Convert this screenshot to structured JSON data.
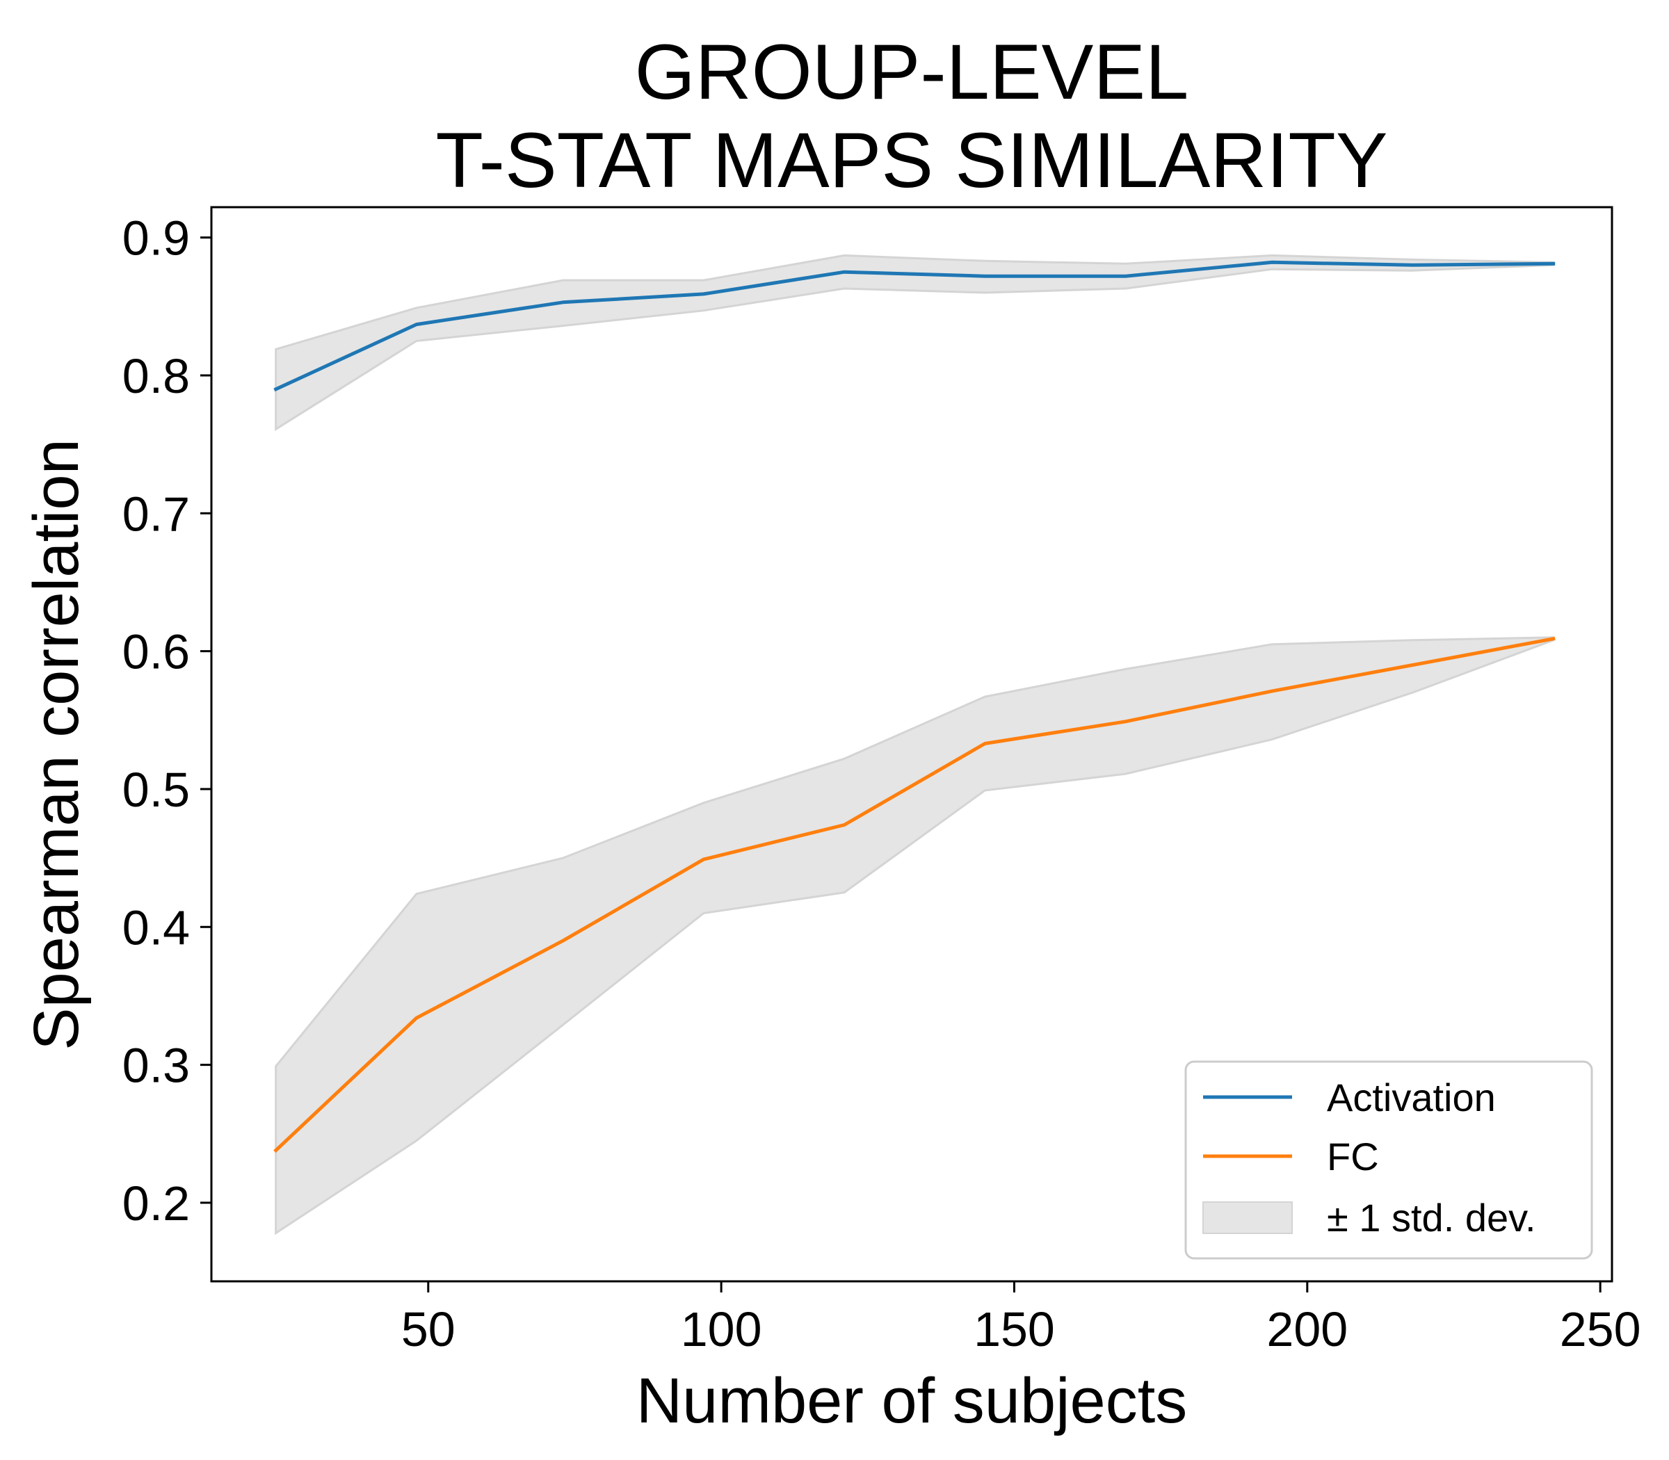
{
  "chart_data": {
    "type": "line",
    "title": [
      "GROUP-LEVEL",
      "T-STAT MAPS SIMILARITY"
    ],
    "xlabel": "Number of subjects",
    "ylabel": "Spearman correlation",
    "xlim": [
      13,
      252
    ],
    "ylim": [
      0.143,
      0.922
    ],
    "xticks": [
      50,
      100,
      150,
      200,
      250
    ],
    "yticks": [
      0.2,
      0.3,
      0.4,
      0.5,
      0.6,
      0.7,
      0.8,
      0.9
    ],
    "x": [
      24,
      48,
      73,
      97,
      121,
      145,
      169,
      194,
      218,
      242
    ],
    "series": [
      {
        "name": "Activation",
        "color": "#1f77b4",
        "values": [
          0.79,
          0.837,
          0.853,
          0.859,
          0.875,
          0.872,
          0.872,
          0.882,
          0.88,
          0.881
        ],
        "lower": [
          0.761,
          0.825,
          0.836,
          0.847,
          0.863,
          0.86,
          0.863,
          0.877,
          0.876,
          0.88
        ],
        "upper": [
          0.819,
          0.849,
          0.869,
          0.869,
          0.887,
          0.883,
          0.881,
          0.887,
          0.884,
          0.882
        ]
      },
      {
        "name": "FC",
        "color": "#ff7f0e",
        "values": [
          0.238,
          0.334,
          0.39,
          0.449,
          0.474,
          0.533,
          0.549,
          0.571,
          0.59,
          0.609
        ],
        "lower": [
          0.178,
          0.245,
          0.329,
          0.41,
          0.425,
          0.499,
          0.511,
          0.536,
          0.57,
          0.608
        ],
        "upper": [
          0.299,
          0.424,
          0.45,
          0.49,
          0.522,
          0.567,
          0.587,
          0.605,
          0.608,
          0.61
        ]
      }
    ],
    "band": {
      "label": "± 1 std. dev.",
      "color": "#e5e5e5",
      "edge": "#d4d4d4"
    },
    "legend_position": "lower-right",
    "grid": false
  }
}
